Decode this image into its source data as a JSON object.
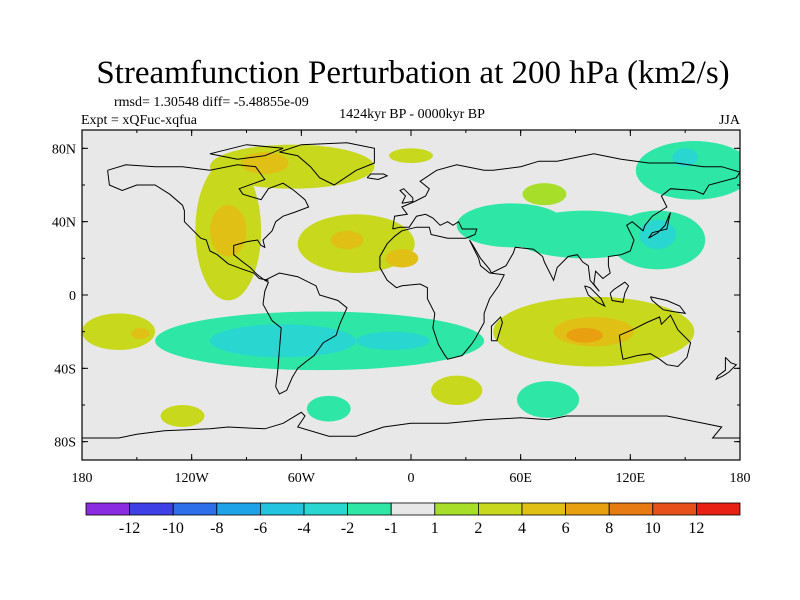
{
  "chart_data": {
    "type": "heatmap",
    "title": "Streamfunction Perturbation at 200 hPa (km2/s)",
    "stats_text": "rmsd= 1.30548 diff= -5.48855e-09",
    "experiment_text": "Expt = xQFuc-xqfua",
    "period_text": "1424kyr BP - 0000kyr BP",
    "season_text": "JJA",
    "x_range": [
      -180,
      180
    ],
    "y_range": [
      -90,
      90
    ],
    "x_ticks": [
      {
        "value": -180,
        "label": "180"
      },
      {
        "value": -120,
        "label": "120W"
      },
      {
        "value": -60,
        "label": "60W"
      },
      {
        "value": 0,
        "label": "0"
      },
      {
        "value": 60,
        "label": "60E"
      },
      {
        "value": 120,
        "label": "120E"
      },
      {
        "value": 180,
        "label": "180"
      }
    ],
    "y_ticks": [
      {
        "value": 80,
        "label": "80N"
      },
      {
        "value": 40,
        "label": "40N"
      },
      {
        "value": 0,
        "label": "0"
      },
      {
        "value": -40,
        "label": "40S"
      },
      {
        "value": -80,
        "label": "80S"
      }
    ],
    "colorbar": {
      "colors": [
        "#8a2be2",
        "#3f3fe6",
        "#2c6fe8",
        "#1ea3e8",
        "#22c4e0",
        "#2ad6d0",
        "#2ee6a6",
        "#e8e8e8",
        "#a6de2a",
        "#c8d81c",
        "#e0c014",
        "#e8a010",
        "#e87a14",
        "#e8501a",
        "#e82014"
      ],
      "tick_labels": [
        "-12",
        "-10",
        "-8",
        "-6",
        "-4",
        "-2",
        "-1",
        "1",
        "2",
        "4",
        "6",
        "8",
        "10",
        "12"
      ]
    },
    "anomalies": [
      {
        "lon": -100,
        "lat": 35,
        "rlon": 18,
        "rlat": 38,
        "level": 2
      },
      {
        "lon": -100,
        "lat": 35,
        "rlon": 10,
        "rlat": 14,
        "level": 4
      },
      {
        "lon": -65,
        "lat": 70,
        "rlon": 45,
        "rlat": 12,
        "level": 2
      },
      {
        "lon": -80,
        "lat": 72,
        "rlon": 13,
        "rlat": 6,
        "level": 4
      },
      {
        "lon": -30,
        "lat": 28,
        "rlon": 32,
        "rlat": 16,
        "level": 2
      },
      {
        "lon": -35,
        "lat": 30,
        "rlon": 9,
        "rlat": 5,
        "level": 4
      },
      {
        "lon": -5,
        "lat": 20,
        "rlon": 9,
        "rlat": 5,
        "level": 4
      },
      {
        "lon": 0,
        "lat": 76,
        "rlon": 12,
        "rlat": 4,
        "level": 2
      },
      {
        "lon": 73,
        "lat": 55,
        "rlon": 12,
        "rlat": 6,
        "level": 1
      },
      {
        "lon": 55,
        "lat": 38,
        "rlon": 30,
        "rlat": 12,
        "level": -1
      },
      {
        "lon": 95,
        "lat": 33,
        "rlon": 40,
        "rlat": 13,
        "level": -1
      },
      {
        "lon": 135,
        "lat": 30,
        "rlon": 26,
        "rlat": 16,
        "level": -1
      },
      {
        "lon": 155,
        "lat": 68,
        "rlon": 32,
        "rlat": 16,
        "level": -1
      },
      {
        "lon": 150,
        "lat": 75,
        "rlon": 7,
        "rlat": 5,
        "level": -2
      },
      {
        "lon": 135,
        "lat": 33,
        "rlon": 10,
        "rlat": 8,
        "level": -2
      },
      {
        "lon": 100,
        "lat": -20,
        "rlon": 55,
        "rlat": 19,
        "level": 2
      },
      {
        "lon": 100,
        "lat": -20,
        "rlon": 22,
        "rlat": 8,
        "level": 4
      },
      {
        "lon": 95,
        "lat": -22,
        "rlon": 10,
        "rlat": 4,
        "level": 6
      },
      {
        "lon": -50,
        "lat": -25,
        "rlon": 90,
        "rlat": 16,
        "level": -1
      },
      {
        "lon": -70,
        "lat": -25,
        "rlon": 40,
        "rlat": 9,
        "level": -2
      },
      {
        "lon": -10,
        "lat": -25,
        "rlon": 20,
        "rlat": 5,
        "level": -2
      },
      {
        "lon": -160,
        "lat": -20,
        "rlon": 20,
        "rlat": 10,
        "level": 2
      },
      {
        "lon": -148,
        "lat": -21,
        "rlon": 5,
        "rlat": 3,
        "level": 4
      },
      {
        "lon": 25,
        "lat": -52,
        "rlon": 14,
        "rlat": 8,
        "level": 2
      },
      {
        "lon": 75,
        "lat": -57,
        "rlon": 17,
        "rlat": 10,
        "level": -1
      },
      {
        "lon": -45,
        "lat": -62,
        "rlon": 12,
        "rlat": 7,
        "level": -1
      },
      {
        "lon": -125,
        "lat": -66,
        "rlon": 12,
        "rlat": 6,
        "level": 2
      }
    ]
  }
}
